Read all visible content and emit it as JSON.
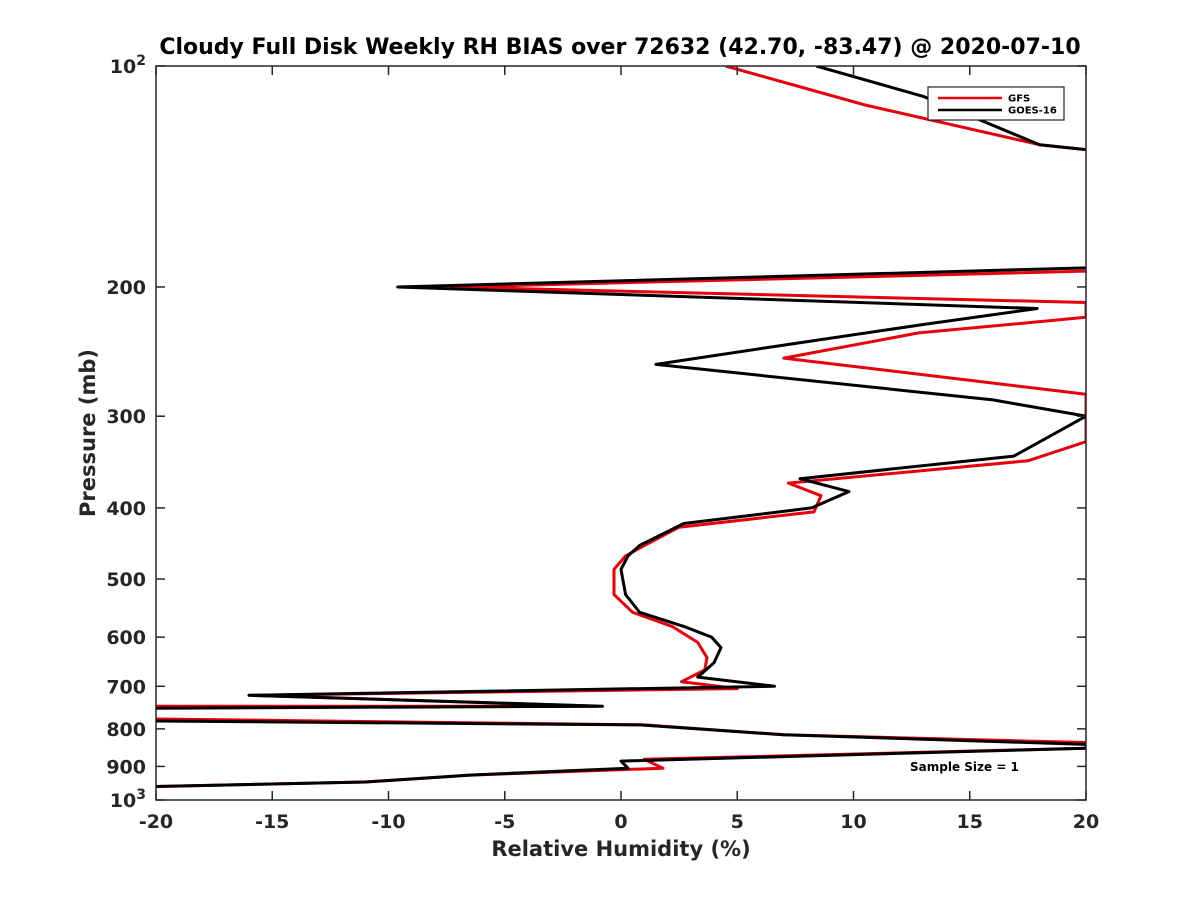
{
  "chart_data": {
    "type": "line",
    "title": "Cloudy Full Disk Weekly RH BIAS over 72632 (42.70, -83.47) @ 2020-07-10",
    "xlabel": "Relative Humidity (%)",
    "ylabel": "Pressure (mb)",
    "xlim": [
      -20,
      20
    ],
    "ylim": [
      100,
      1000
    ],
    "y_scale": "log",
    "y_reversed": true,
    "x_ticks": [
      "-20",
      "-15",
      "-10",
      "-5",
      "0",
      "5",
      "10",
      "15",
      "20"
    ],
    "y_ticks": [
      {
        "value": 100,
        "base": "10",
        "exp": "2"
      },
      {
        "value": 200,
        "label": "200"
      },
      {
        "value": 300,
        "label": "300"
      },
      {
        "value": 400,
        "label": "400"
      },
      {
        "value": 500,
        "label": "500"
      },
      {
        "value": 600,
        "label": "600"
      },
      {
        "value": 700,
        "label": "700"
      },
      {
        "value": 800,
        "label": "800"
      },
      {
        "value": 900,
        "label": "900"
      },
      {
        "value": 1000,
        "base": "10",
        "exp": "3"
      }
    ],
    "grid": false,
    "legend_position": "top-right",
    "annotation": "Sample Size = 1",
    "series": [
      {
        "name": "GFS",
        "color": "#e8000b",
        "points": [
          [
            4.5,
            100
          ],
          [
            10.5,
            113
          ],
          [
            18,
            128
          ],
          [
            21,
            131
          ],
          [
            21,
            190
          ],
          [
            -7.3,
            200
          ],
          [
            20,
            210
          ],
          [
            20,
            220
          ],
          [
            12.8,
            231
          ],
          [
            7.0,
            250
          ],
          [
            20,
            280
          ],
          [
            20,
            325
          ],
          [
            17.5,
            345
          ],
          [
            7.2,
            370
          ],
          [
            8.6,
            385
          ],
          [
            8.3,
            405
          ],
          [
            2.5,
            425
          ],
          [
            1.0,
            450
          ],
          [
            0.2,
            465
          ],
          [
            -0.3,
            485
          ],
          [
            -0.3,
            505
          ],
          [
            -0.3,
            525
          ],
          [
            0.5,
            555
          ],
          [
            2.2,
            580
          ],
          [
            3.3,
            610
          ],
          [
            3.7,
            640
          ],
          [
            3.6,
            665
          ],
          [
            2.6,
            690
          ],
          [
            5.0,
            705
          ],
          [
            -15.9,
            720
          ],
          [
            -1.0,
            745
          ],
          [
            -21,
            745
          ],
          [
            -21,
            775
          ],
          [
            1.0,
            790
          ],
          [
            7.0,
            815
          ],
          [
            20,
            835
          ],
          [
            20,
            850
          ],
          [
            1.0,
            880
          ],
          [
            1.8,
            905
          ],
          [
            -6.5,
            925
          ],
          [
            -11,
            945
          ],
          [
            -21,
            960
          ]
        ]
      },
      {
        "name": "GOES-16",
        "color": "#000000",
        "points": [
          [
            8.4,
            100
          ],
          [
            13,
            110
          ],
          [
            18,
            128
          ],
          [
            21,
            131
          ],
          [
            21,
            188
          ],
          [
            -9.6,
            200
          ],
          [
            17.9,
            214
          ],
          [
            13,
            225
          ],
          [
            7.0,
            240
          ],
          [
            1.5,
            255
          ],
          [
            16.0,
            285
          ],
          [
            20,
            300
          ],
          [
            16.9,
            340
          ],
          [
            7.7,
            365
          ],
          [
            9.8,
            380
          ],
          [
            8.2,
            400
          ],
          [
            2.7,
            420
          ],
          [
            0.8,
            450
          ],
          [
            0.3,
            465
          ],
          [
            0,
            485
          ],
          [
            0.1,
            505
          ],
          [
            0.2,
            525
          ],
          [
            0.8,
            555
          ],
          [
            2.7,
            580
          ],
          [
            3.9,
            600
          ],
          [
            4.3,
            620
          ],
          [
            4.0,
            650
          ],
          [
            3.3,
            680
          ],
          [
            6.6,
            700
          ],
          [
            -16,
            720
          ],
          [
            -0.8,
            745
          ],
          [
            -21,
            750
          ],
          [
            -21,
            780
          ],
          [
            0.8,
            790
          ],
          [
            7.0,
            815
          ],
          [
            20,
            840
          ],
          [
            20,
            850
          ],
          [
            0,
            885
          ],
          [
            0.3,
            905
          ],
          [
            -6.5,
            925
          ],
          [
            -11,
            945
          ],
          [
            -21,
            960
          ]
        ]
      }
    ]
  }
}
